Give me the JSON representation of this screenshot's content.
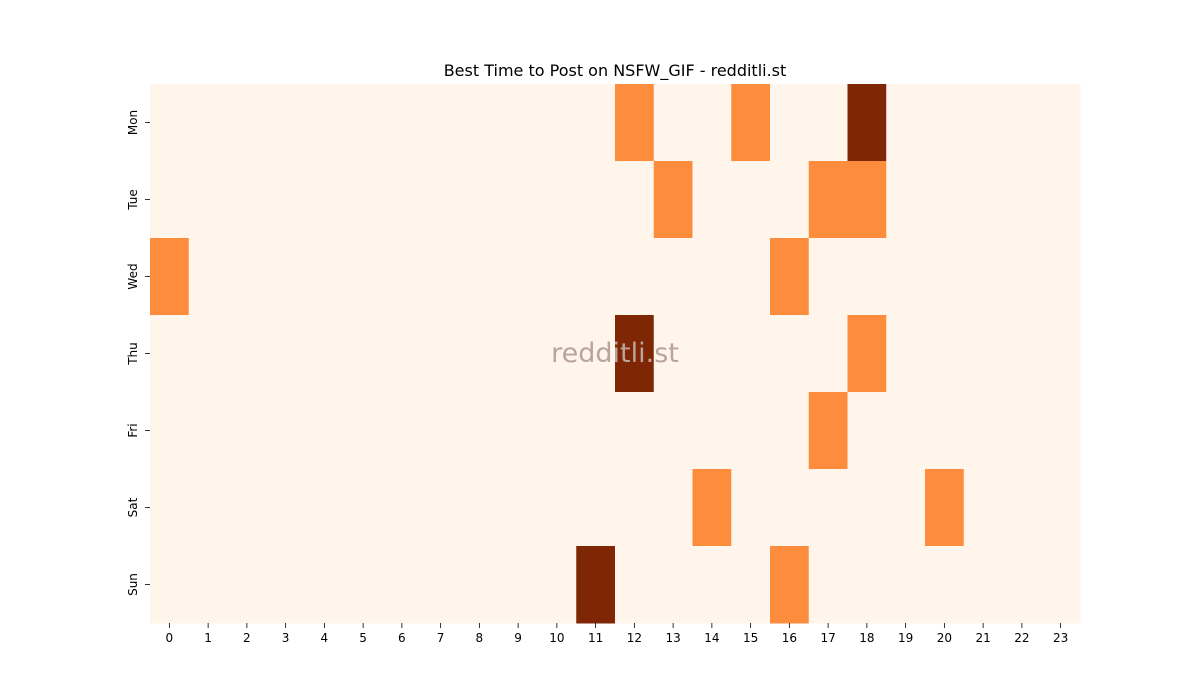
{
  "chart_data": {
    "type": "heatmap",
    "title": "Best Time to Post on NSFW_GIF - redditli.st",
    "watermark": "redditli.st",
    "x_categories": [
      "0",
      "1",
      "2",
      "3",
      "4",
      "5",
      "6",
      "7",
      "8",
      "9",
      "10",
      "11",
      "12",
      "13",
      "14",
      "15",
      "16",
      "17",
      "18",
      "19",
      "20",
      "21",
      "22",
      "23"
    ],
    "y_categories": [
      "Mon",
      "Tue",
      "Wed",
      "Thu",
      "Fri",
      "Sat",
      "Sun"
    ],
    "values": [
      [
        0,
        0,
        0,
        0,
        0,
        0,
        0,
        0,
        0,
        0,
        0,
        0,
        1,
        0,
        0,
        1,
        0,
        0,
        2,
        0,
        0,
        0,
        0,
        0
      ],
      [
        0,
        0,
        0,
        0,
        0,
        0,
        0,
        0,
        0,
        0,
        0,
        0,
        0,
        1,
        0,
        0,
        0,
        1,
        1,
        0,
        0,
        0,
        0,
        0
      ],
      [
        1,
        0,
        0,
        0,
        0,
        0,
        0,
        0,
        0,
        0,
        0,
        0,
        0,
        0,
        0,
        0,
        1,
        0,
        0,
        0,
        0,
        0,
        0,
        0
      ],
      [
        0,
        0,
        0,
        0,
        0,
        0,
        0,
        0,
        0,
        0,
        0,
        0,
        2,
        0,
        0,
        0,
        0,
        0,
        1,
        0,
        0,
        0,
        0,
        0
      ],
      [
        0,
        0,
        0,
        0,
        0,
        0,
        0,
        0,
        0,
        0,
        0,
        0,
        0,
        0,
        0,
        0,
        0,
        1,
        0,
        0,
        0,
        0,
        0,
        0
      ],
      [
        0,
        0,
        0,
        0,
        0,
        0,
        0,
        0,
        0,
        0,
        0,
        0,
        0,
        0,
        1,
        0,
        0,
        0,
        0,
        0,
        1,
        0,
        0,
        0
      ],
      [
        0,
        0,
        0,
        0,
        0,
        0,
        0,
        0,
        0,
        0,
        0,
        2,
        0,
        0,
        0,
        0,
        1,
        0,
        0,
        0,
        0,
        0,
        0,
        0
      ]
    ],
    "colors": {
      "0": "#fff5eb",
      "1": "#fd8d3c",
      "2": "#7f2704"
    },
    "colorbar": false,
    "grid": false
  }
}
